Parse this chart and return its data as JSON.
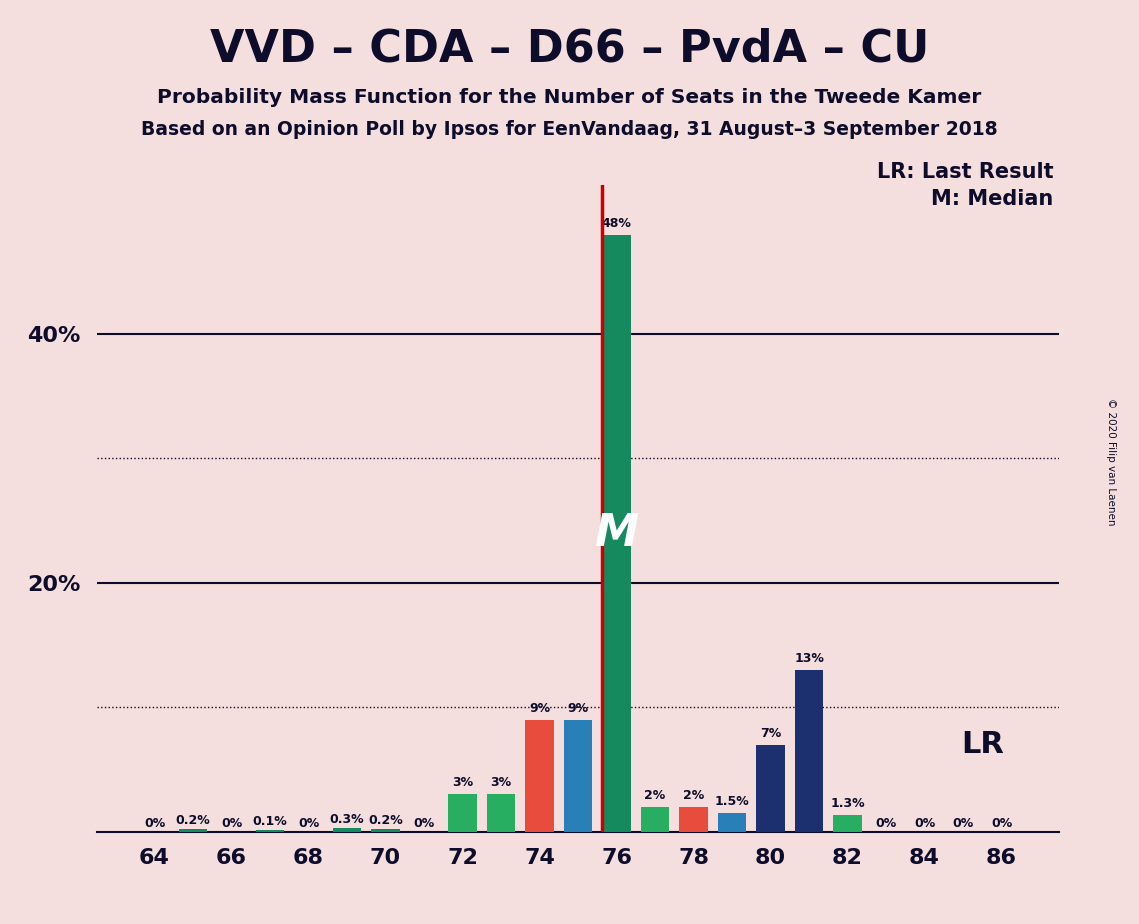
{
  "title": "VVD – CDA – D66 – PvdA – CU",
  "subtitle1": "Probability Mass Function for the Number of Seats in the Tweede Kamer",
  "subtitle2": "Based on an Opinion Poll by Ipsos for EenVandaag, 31 August–3 September 2018",
  "copyright": "© 2020 Filip van Laenen",
  "background_color": "#f5dede",
  "seats": [
    64,
    65,
    66,
    67,
    68,
    69,
    70,
    71,
    72,
    73,
    74,
    75,
    76,
    77,
    78,
    79,
    80,
    81,
    82,
    83,
    84,
    85,
    86
  ],
  "values": [
    0.0,
    0.2,
    0.0,
    0.1,
    0.0,
    0.3,
    0.2,
    0.0,
    3.0,
    3.0,
    9.0,
    9.0,
    48.0,
    2.0,
    2.0,
    1.5,
    7.0,
    13.0,
    1.3,
    0.0,
    0.0,
    0.0,
    0.0
  ],
  "labels": [
    "0%",
    "0.2%",
    "0%",
    "0.1%",
    "0%",
    "0.3%",
    "0.2%",
    "0%",
    "3%",
    "3%",
    "9%",
    "9%",
    "48%",
    "2%",
    "2%",
    "1.5%",
    "7%",
    "13%",
    "1.3%",
    "0%",
    "0%",
    "0%",
    "0%"
  ],
  "colors": [
    "#148a5e",
    "#148a5e",
    "#148a5e",
    "#148a5e",
    "#148a5e",
    "#148a5e",
    "#148a5e",
    "#148a5e",
    "#27ae60",
    "#27ae60",
    "#e74c3c",
    "#2980b9",
    "#148a5e",
    "#27ae60",
    "#e74c3c",
    "#2980b9",
    "#1c2f6e",
    "#1c2f6e",
    "#27ae60",
    "#148a5e",
    "#148a5e",
    "#148a5e",
    "#148a5e"
  ],
  "median_seat": 76,
  "lr_seat": 76,
  "lr_line_color": "#cc0000",
  "ylim_max": 52,
  "solid_ytick_values": [
    20,
    40
  ],
  "dotted_ytick_values": [
    10,
    30
  ],
  "ytick_positions": [
    20,
    40
  ],
  "legend_lr": "LR: Last Result",
  "legend_m": "M: Median",
  "lr_label": "LR"
}
